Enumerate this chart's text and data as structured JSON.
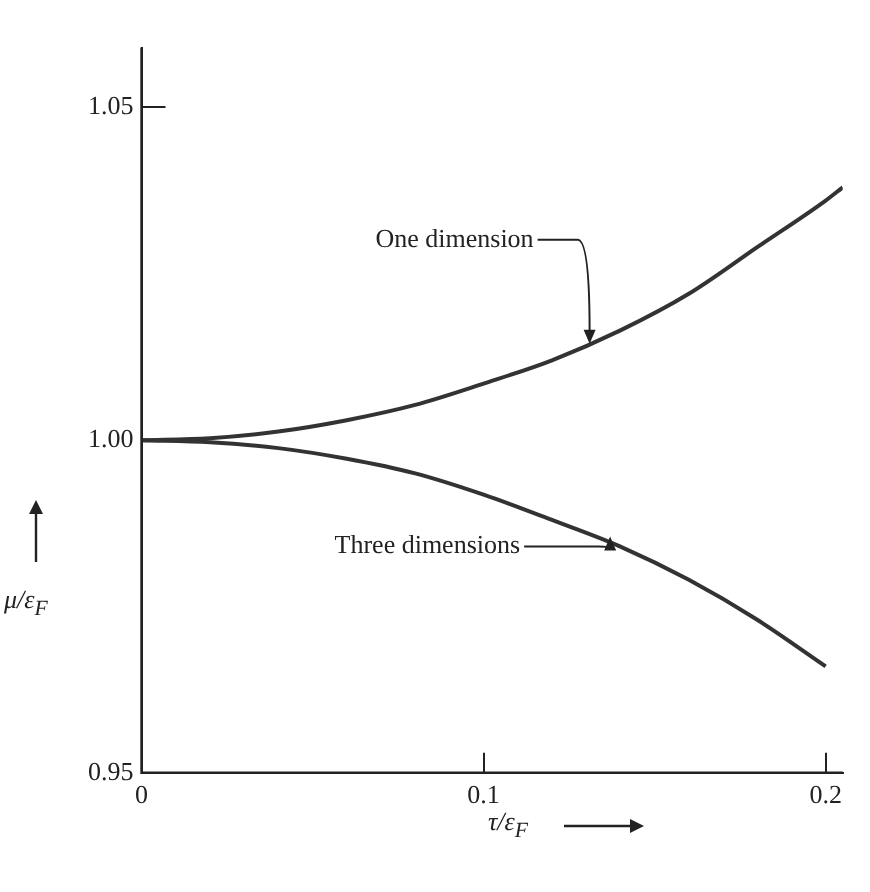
{
  "chart_data": {
    "type": "line",
    "xlabel": "τ/ε$_{F}$",
    "ylabel": "μ/ε$_{F}$",
    "xlim": [
      0,
      0.205
    ],
    "ylim": [
      0.95,
      1.059
    ],
    "xticks": [
      0,
      {
        "value": 0.1,
        "label": "0.1"
      },
      {
        "value": 0.2,
        "label": "0.2"
      }
    ],
    "yticks": [
      {
        "value": 0.95,
        "label": "0.95"
      },
      {
        "value": 1.0,
        "label": "1.00"
      },
      {
        "value": 1.05,
        "label": "1.05"
      }
    ],
    "grid": false,
    "legend": false,
    "marker": "none",
    "line_style": "solid",
    "series": [
      {
        "color": "#333333",
        "x": [
          0,
          0.02,
          0.04,
          0.06,
          0.08,
          0.1,
          0.12,
          0.14,
          0.16,
          0.18,
          0.2,
          0.205
        ],
        "values": [
          1.0,
          1.0003,
          1.0013,
          1.003,
          1.0053,
          1.0085,
          1.012,
          1.0165,
          1.022,
          1.029,
          1.036,
          1.038
        ]
      },
      {
        "color": "#333333",
        "x": [
          0,
          0.02,
          0.04,
          0.06,
          0.08,
          0.1,
          0.12,
          0.14,
          0.16,
          0.18,
          0.2
        ],
        "values": [
          1.0,
          0.9997,
          0.9988,
          0.9972,
          0.995,
          0.9918,
          0.988,
          0.984,
          0.979,
          0.973,
          0.966
        ]
      }
    ],
    "annotations": [
      {
        "text": "One dimension",
        "x": 0.131,
        "y": 1.0145
      },
      {
        "text": "Three dimensions",
        "x": 0.137,
        "y": 0.9855
      }
    ]
  }
}
